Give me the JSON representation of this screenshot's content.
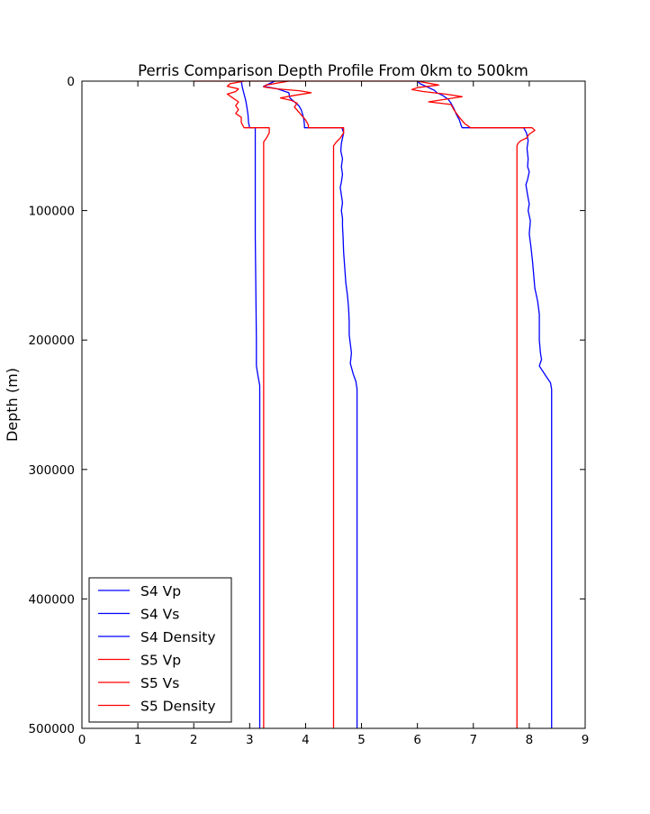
{
  "chart_data": {
    "type": "line",
    "title": "Perris Comparison Depth Profile From 0km to 500km",
    "xlabel": "",
    "ylabel": "Depth (m)",
    "xlim": [
      0,
      9
    ],
    "ylim": [
      0,
      500000
    ],
    "y_inverted": true,
    "x_ticks": [
      "0",
      "1",
      "2",
      "3",
      "4",
      "5",
      "6",
      "7",
      "8",
      "9"
    ],
    "y_ticks": [
      "0",
      "100000",
      "200000",
      "300000",
      "400000",
      "500000"
    ],
    "grid": false,
    "legend_position": "bottom-left",
    "series": [
      {
        "name": "S4 Vp",
        "color": "#0000ff",
        "points": [
          [
            6.0,
            0
          ],
          [
            6.05,
            2000
          ],
          [
            6.2,
            5000
          ],
          [
            6.3,
            7000
          ],
          [
            6.35,
            9000
          ],
          [
            6.45,
            11000
          ],
          [
            6.55,
            14000
          ],
          [
            6.6,
            17000
          ],
          [
            6.65,
            21000
          ],
          [
            6.7,
            26000
          ],
          [
            6.75,
            30000
          ],
          [
            6.78,
            34000
          ],
          [
            6.8,
            36000
          ],
          [
            7.9,
            36000
          ],
          [
            7.95,
            40000
          ],
          [
            7.98,
            46000
          ],
          [
            7.96,
            52000
          ],
          [
            7.98,
            60000
          ],
          [
            7.97,
            66000
          ],
          [
            8.0,
            70000
          ],
          [
            7.97,
            76000
          ],
          [
            7.94,
            80000
          ],
          [
            7.97,
            88000
          ],
          [
            8.0,
            95000
          ],
          [
            7.98,
            100000
          ],
          [
            8.02,
            108000
          ],
          [
            8.0,
            118000
          ],
          [
            8.03,
            128000
          ],
          [
            8.06,
            140000
          ],
          [
            8.08,
            150000
          ],
          [
            8.1,
            160000
          ],
          [
            8.15,
            170000
          ],
          [
            8.18,
            180000
          ],
          [
            8.18,
            190000
          ],
          [
            8.18,
            195000
          ],
          [
            8.18,
            200000
          ],
          [
            8.2,
            210000
          ],
          [
            8.22,
            215000
          ],
          [
            8.18,
            220000
          ],
          [
            8.3,
            228000
          ],
          [
            8.38,
            233000
          ],
          [
            8.4,
            238000
          ],
          [
            8.4,
            500000
          ]
        ]
      },
      {
        "name": "S4 Vs",
        "color": "#0000ff",
        "points": [
          [
            3.45,
            0
          ],
          [
            3.35,
            2000
          ],
          [
            3.25,
            4000
          ],
          [
            3.5,
            6000
          ],
          [
            3.7,
            9000
          ],
          [
            3.72,
            13000
          ],
          [
            3.8,
            16000
          ],
          [
            3.88,
            19000
          ],
          [
            3.92,
            22000
          ],
          [
            3.95,
            26000
          ],
          [
            3.97,
            30000
          ],
          [
            3.98,
            34000
          ],
          [
            3.98,
            36000
          ],
          [
            4.65,
            36000
          ],
          [
            4.68,
            40000
          ],
          [
            4.66,
            44000
          ],
          [
            4.64,
            48000
          ],
          [
            4.63,
            54000
          ],
          [
            4.66,
            60000
          ],
          [
            4.64,
            66000
          ],
          [
            4.66,
            72000
          ],
          [
            4.64,
            78000
          ],
          [
            4.62,
            82000
          ],
          [
            4.64,
            88000
          ],
          [
            4.66,
            94000
          ],
          [
            4.64,
            100000
          ],
          [
            4.66,
            106000
          ],
          [
            4.66,
            112000
          ],
          [
            4.67,
            120000
          ],
          [
            4.68,
            132000
          ],
          [
            4.7,
            144000
          ],
          [
            4.72,
            156000
          ],
          [
            4.75,
            166000
          ],
          [
            4.77,
            176000
          ],
          [
            4.78,
            186000
          ],
          [
            4.78,
            196000
          ],
          [
            4.8,
            203000
          ],
          [
            4.82,
            210000
          ],
          [
            4.8,
            218000
          ],
          [
            4.85,
            226000
          ],
          [
            4.9,
            232000
          ],
          [
            4.92,
            238000
          ],
          [
            4.92,
            500000
          ]
        ]
      },
      {
        "name": "S4 Density",
        "color": "#0000ff",
        "points": [
          [
            2.85,
            0
          ],
          [
            2.87,
            5000
          ],
          [
            2.9,
            10000
          ],
          [
            2.93,
            15000
          ],
          [
            2.95,
            20000
          ],
          [
            2.97,
            26000
          ],
          [
            2.98,
            32000
          ],
          [
            3.0,
            36000
          ],
          [
            3.1,
            36000
          ],
          [
            3.1,
            50000
          ],
          [
            3.1,
            80000
          ],
          [
            3.1,
            120000
          ],
          [
            3.11,
            160000
          ],
          [
            3.12,
            200000
          ],
          [
            3.12,
            220000
          ],
          [
            3.15,
            228000
          ],
          [
            3.18,
            235000
          ],
          [
            3.18,
            500000
          ]
        ]
      },
      {
        "name": "S5 Vp",
        "color": "#ff0000",
        "points": [
          [
            2.0,
            0
          ],
          [
            6.0,
            0
          ],
          [
            6.38,
            3000
          ],
          [
            6.0,
            5000
          ],
          [
            5.9,
            6500
          ],
          [
            6.1,
            8000
          ],
          [
            6.5,
            10000
          ],
          [
            6.8,
            12000
          ],
          [
            6.5,
            14000
          ],
          [
            6.2,
            16000
          ],
          [
            6.6,
            18000
          ],
          [
            6.65,
            22000
          ],
          [
            6.75,
            28000
          ],
          [
            6.85,
            33000
          ],
          [
            6.95,
            36000
          ],
          [
            8.05,
            36000
          ],
          [
            8.1,
            38000
          ],
          [
            8.0,
            41000
          ],
          [
            7.95,
            44000
          ],
          [
            7.85,
            46000
          ],
          [
            7.8,
            48000
          ],
          [
            7.78,
            50000
          ],
          [
            7.78,
            500000
          ]
        ]
      },
      {
        "name": "S5 Vs",
        "color": "#ff0000",
        "points": [
          [
            3.7,
            0
          ],
          [
            3.5,
            1500
          ],
          [
            3.3,
            3000
          ],
          [
            3.25,
            4500
          ],
          [
            3.5,
            6000
          ],
          [
            3.9,
            7500
          ],
          [
            4.1,
            9000
          ],
          [
            3.8,
            11000
          ],
          [
            3.55,
            13000
          ],
          [
            3.75,
            15000
          ],
          [
            3.85,
            17000
          ],
          [
            3.8,
            20000
          ],
          [
            3.9,
            25000
          ],
          [
            4.0,
            30000
          ],
          [
            4.05,
            34000
          ],
          [
            4.05,
            36000
          ],
          [
            4.68,
            36000
          ],
          [
            4.68,
            40000
          ],
          [
            4.62,
            44000
          ],
          [
            4.55,
            47000
          ],
          [
            4.5,
            50000
          ],
          [
            4.5,
            500000
          ]
        ]
      },
      {
        "name": "S5 Density",
        "color": "#ff0000",
        "points": [
          [
            2.9,
            0
          ],
          [
            2.65,
            2000
          ],
          [
            2.6,
            4000
          ],
          [
            2.8,
            6000
          ],
          [
            2.75,
            8000
          ],
          [
            2.6,
            10000
          ],
          [
            2.7,
            13000
          ],
          [
            2.8,
            16000
          ],
          [
            2.75,
            19000
          ],
          [
            2.8,
            22000
          ],
          [
            2.75,
            25000
          ],
          [
            2.85,
            28000
          ],
          [
            2.85,
            32000
          ],
          [
            2.9,
            36000
          ],
          [
            3.35,
            36000
          ],
          [
            3.35,
            40000
          ],
          [
            3.3,
            44000
          ],
          [
            3.25,
            47000
          ],
          [
            3.25,
            50000
          ],
          [
            3.25,
            100000
          ],
          [
            3.25,
            200000
          ],
          [
            3.25,
            500000
          ]
        ]
      }
    ]
  }
}
